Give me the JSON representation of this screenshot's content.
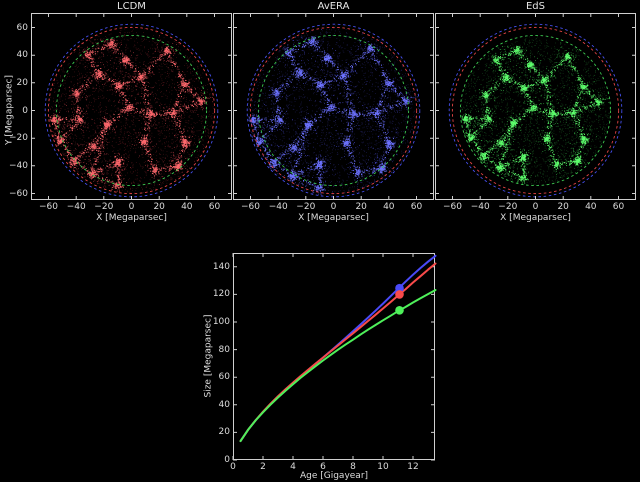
{
  "figure": {
    "background": "#000000",
    "text_color": "#dcdcdc",
    "spine_color": "#cfcfcf"
  },
  "reference_circles": [
    {
      "model": "AvERA",
      "radius_mpc": 62.4,
      "color": "#4650f0",
      "style": "dashed"
    },
    {
      "model": "LCDM",
      "radius_mpc": 60.1,
      "color": "#e64545",
      "style": "dashed"
    },
    {
      "model": "EdS",
      "radius_mpc": 54.3,
      "color": "#3cc850",
      "style": "dashed"
    }
  ],
  "chart_data": [
    {
      "type": "scatter",
      "title": "LCDM",
      "description": "circular cosmic-web galaxy distribution, radius ~60 Mpc, with dashed reference circles of all three models",
      "xlabel": "X [Megaparsec]",
      "ylabel": "Y [Megaparsec]",
      "xlim": [
        -72.7,
        72.7
      ],
      "ylim": [
        -64.7,
        70.5
      ],
      "cloud_radius_mpc": 60.1,
      "colors": {
        "dim": "#962832",
        "mid": "#d74650",
        "bright": "#ff696e"
      },
      "xticks": {
        "values": [
          -60,
          -40,
          -20,
          0,
          20,
          40,
          60
        ],
        "labels": [
          "−60",
          "−40",
          "−20",
          "0",
          "20",
          "40",
          "60"
        ]
      },
      "yticks": {
        "values": [
          60,
          40,
          20,
          0,
          -20,
          -40,
          -60
        ],
        "labels": [
          "60",
          "40",
          "20",
          "0",
          "−20",
          "−40",
          "−60"
        ]
      }
    },
    {
      "type": "scatter",
      "title": "AvERA",
      "description": "circular cosmic-web galaxy distribution, radius ~62 Mpc, with dashed reference circles of all three models",
      "xlabel": "X [Megaparsec]",
      "ylabel": null,
      "xlim": [
        -72.7,
        72.7
      ],
      "ylim": [
        -64.7,
        70.5
      ],
      "cloud_radius_mpc": 62.4,
      "colors": {
        "dim": "#3c3caa",
        "mid": "#5055eb",
        "bright": "#6e73ff"
      },
      "xticks": {
        "values": [
          -60,
          -40,
          -20,
          0,
          20,
          40,
          60
        ],
        "labels": [
          "−60",
          "−40",
          "−20",
          "0",
          "20",
          "40",
          "60"
        ]
      },
      "yticks": {
        "values": [
          60,
          40,
          20,
          0,
          -20,
          -40,
          -60
        ],
        "labels": []
      }
    },
    {
      "type": "scatter",
      "title": "EdS",
      "description": "circular cosmic-web galaxy distribution, radius ~54 Mpc, with dashed reference circles of all three models",
      "xlabel": "X [Megaparsec]",
      "ylabel": null,
      "xlim": [
        -72.7,
        72.7
      ],
      "ylim": [
        -64.7,
        70.5
      ],
      "cloud_radius_mpc": 54.3,
      "colors": {
        "dim": "#288c37",
        "mid": "#3cd250",
        "bright": "#5fff6e"
      },
      "xticks": {
        "values": [
          -60,
          -40,
          -20,
          0,
          20,
          40,
          60
        ],
        "labels": [
          "−60",
          "−40",
          "−20",
          "0",
          "20",
          "40",
          "60"
        ]
      },
      "yticks": {
        "values": [
          60,
          40,
          20,
          0,
          -20,
          -40,
          -60
        ],
        "labels": []
      }
    },
    {
      "type": "line",
      "title": "",
      "xlabel": "Age [Gigayear]",
      "ylabel": "Size [Megaparsec]",
      "xlim": [
        0,
        13.47
      ],
      "ylim": [
        0,
        150
      ],
      "xticks": {
        "values": [
          0,
          2,
          4,
          6,
          8,
          10,
          12
        ],
        "labels": [
          "0",
          "2",
          "4",
          "6",
          "8",
          "10",
          "12"
        ]
      },
      "yticks": {
        "values": [
          0,
          20,
          40,
          60,
          80,
          100,
          120,
          140
        ],
        "labels": [
          "0",
          "20",
          "40",
          "60",
          "80",
          "100",
          "120",
          "140"
        ]
      },
      "x": [
        0.5,
        1,
        1.5,
        2,
        2.5,
        3,
        3.5,
        4,
        4.5,
        5,
        5.5,
        6,
        6.5,
        7,
        7.5,
        8,
        8.5,
        9,
        9.5,
        10,
        10.5,
        11,
        11.5,
        12,
        12.5,
        13,
        13.5
      ],
      "series": [
        {
          "name": "AvERA",
          "color": "#4a4af8",
          "values": [
            13.7,
            21.8,
            28.6,
            34.8,
            40.6,
            45.9,
            50.9,
            55.7,
            60.4,
            65.0,
            69.6,
            74.2,
            78.9,
            83.6,
            88.4,
            93.3,
            98.2,
            103.2,
            108.2,
            113.3,
            118.6,
            124.0,
            129.2,
            134.3,
            139.1,
            143.7,
            148.0
          ],
          "endpoint_marker": {
            "age": 11.1,
            "size": 124.5
          }
        },
        {
          "name": "LCDM",
          "color": "#f84a4a",
          "values": [
            13.7,
            21.8,
            28.7,
            35.0,
            40.8,
            46.2,
            51.3,
            56.1,
            60.8,
            65.3,
            69.8,
            74.2,
            78.6,
            83.0,
            87.4,
            91.8,
            96.2,
            100.7,
            105.2,
            109.8,
            114.4,
            119.1,
            123.8,
            128.6,
            133.2,
            137.9,
            142.4
          ],
          "endpoint_marker": {
            "age": 11.1,
            "size": 120.0
          }
        },
        {
          "name": "EdS",
          "color": "#4ef05a",
          "values": [
            13.7,
            21.8,
            28.6,
            34.6,
            40.1,
            45.3,
            50.2,
            54.9,
            59.5,
            63.8,
            68.0,
            72.1,
            76.0,
            79.9,
            83.6,
            87.2,
            90.9,
            94.4,
            97.8,
            101.2,
            104.5,
            107.8,
            110.9,
            114.1,
            117.2,
            120.2,
            123.2
          ],
          "endpoint_marker": {
            "age": 11.1,
            "size": 108.5
          }
        }
      ]
    }
  ]
}
